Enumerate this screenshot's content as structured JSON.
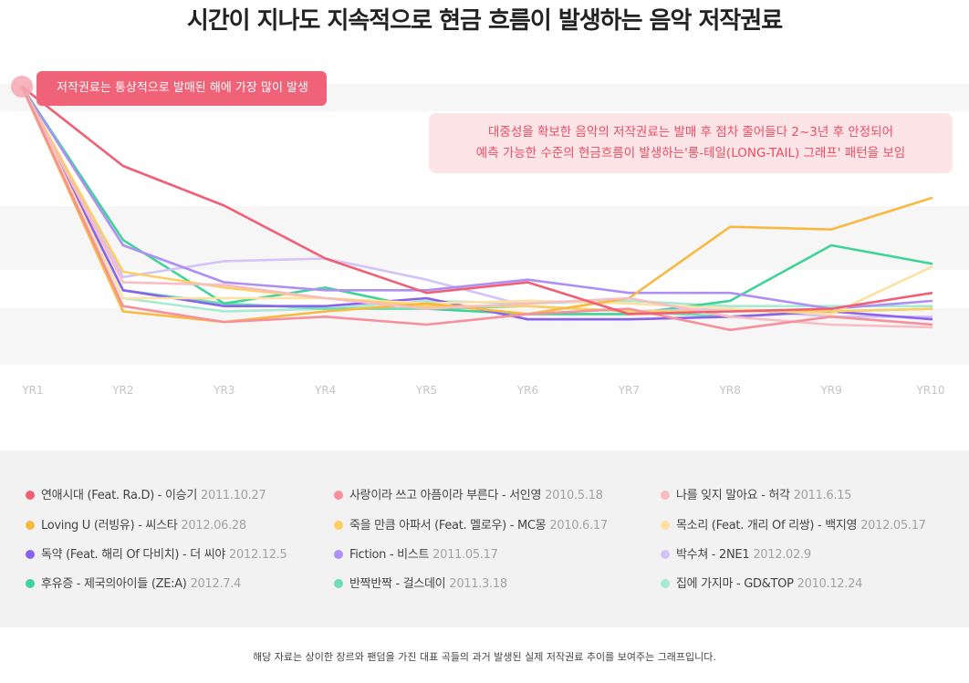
{
  "title": "시간이 지나도 지속적으로 현금 흐름이 발생하는 음악 저작권료",
  "annotations": {
    "peak": "저작권료는 통상적으로 발매된 해에 가장 많이 발생",
    "longtail_line1": "대중성을 확보한 음악의 저작권료는 발매 후 점차 줄어들다 2~3년 후 안정되어",
    "longtail_line2": "예측 가능한 수준의 현금흐름이 발생하는'롱-테일(LONG-TAIL) 그래프' 패턴을 보임"
  },
  "footnote": "해당 자료는 상이한 장르와 팬덤을 가진 대표 곡들의 과거 발생된 실제 저작권료 추이를 보여주는 그래프입니다.",
  "colors": {
    "band": "#f6f6f6",
    "axis_label": "#c4c4c4",
    "peak_marker": "#f4a7b2"
  },
  "chart_data": {
    "type": "line",
    "x": [
      "YR1",
      "YR2",
      "YR3",
      "YR4",
      "YR5",
      "YR6",
      "YR7",
      "YR8",
      "YR9",
      "YR10"
    ],
    "ylim": [
      0,
      100
    ],
    "grid": "alternating horizontal bands",
    "legend_position": "bottom",
    "series": [
      {
        "name": "연애시대 (Feat. Ra.D) - 이승기",
        "date": "2011.10.27",
        "color": "#f05f73",
        "values": [
          100,
          70,
          55,
          35,
          22,
          26,
          14,
          15,
          16,
          22
        ]
      },
      {
        "name": "사랑이라 쓰고 아픔이라 부른다 - 서인영",
        "date": "2010.5.18",
        "color": "#f6909c",
        "values": [
          100,
          17,
          11,
          13,
          10,
          14,
          16,
          8,
          13,
          10
        ]
      },
      {
        "name": "나를 잊지 말아요 - 허각",
        "date": "2011.6.15",
        "color": "#f9bcc3",
        "values": [
          100,
          26,
          25,
          20,
          16,
          18,
          20,
          13,
          10,
          9
        ]
      },
      {
        "name": "Loving U (러빙유) - 씨스타",
        "date": "2012.06.28",
        "color": "#f8b940",
        "values": [
          100,
          15,
          11,
          15,
          18,
          14,
          20,
          47,
          46,
          58
        ]
      },
      {
        "name": "죽을 만큼 아파서 (Feat. 멜로우) - MC몽",
        "date": "2010.6.17",
        "color": "#fbcf63",
        "values": [
          100,
          30,
          24,
          20,
          17,
          17,
          15,
          15,
          15,
          16
        ]
      },
      {
        "name": "목소리 (Feat. 개리 Of 리쌍) - 백지영",
        "date": "2012.05.17",
        "color": "#fde0a4",
        "values": [
          100,
          20,
          20,
          20,
          18,
          19,
          18,
          16,
          14,
          32
        ]
      },
      {
        "name": "독약 (Feat. 해리 Of 다비치) - 더 씨야",
        "date": "2012.12.5",
        "color": "#8b62ef",
        "values": [
          100,
          23,
          17,
          17,
          20,
          12,
          12,
          13,
          15,
          12
        ]
      },
      {
        "name": "Fiction - 비스트",
        "date": "2011.05.17",
        "color": "#ae90f3",
        "values": [
          100,
          40,
          26,
          23,
          23,
          27,
          22,
          22,
          16,
          19
        ]
      },
      {
        "name": "박수쳐 - 2NE1",
        "date": "2012.02.9",
        "color": "#d4c3f8",
        "values": [
          100,
          28,
          34,
          35,
          27,
          17,
          15,
          16,
          13,
          13
        ]
      },
      {
        "name": "후유증 - 제국의아이들 (ZE:A)",
        "date": "2012.7.4",
        "color": "#3fd39a",
        "values": [
          100,
          42,
          18,
          24,
          16,
          14,
          14,
          19,
          40,
          33
        ]
      },
      {
        "name": "반짝반짝 - 걸스데이",
        "date": "2011.3.18",
        "color": "#6fdcb2",
        "values": [
          100,
          23,
          18,
          16,
          16,
          17,
          15,
          13,
          15,
          16
        ]
      },
      {
        "name": "집에 가지마 - GD&TOP",
        "date": "2010.12.24",
        "color": "#a7ead1",
        "values": [
          100,
          20,
          15,
          16,
          19,
          18,
          19,
          17,
          17,
          17
        ]
      }
    ]
  }
}
